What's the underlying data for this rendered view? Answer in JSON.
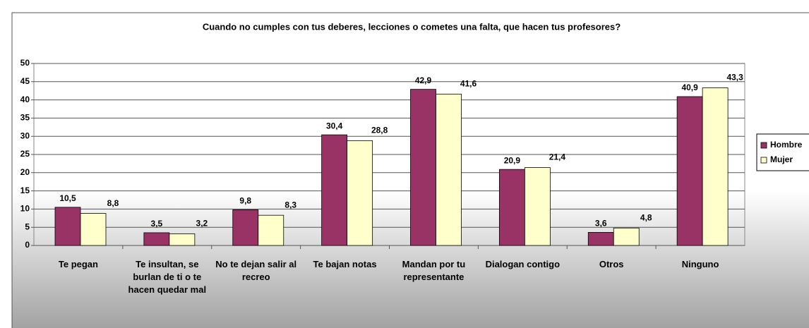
{
  "chart_data": {
    "type": "bar",
    "title": "Cuando no cumples con tus deberes, lecciones o cometes una falta, que hacen tus profesores?",
    "categories": [
      "Te pegan",
      "Te insultan, se burlan de ti o te hacen quedar mal",
      "No te dejan salir al recreo",
      "Te bajan notas",
      "Mandan por tu representante",
      "Dialogan contigo",
      "Otros",
      "Ninguno"
    ],
    "series": [
      {
        "name": "Hombre",
        "color": "#993366",
        "values": [
          10.5,
          3.5,
          9.8,
          30.4,
          42.9,
          20.9,
          3.6,
          40.9
        ],
        "value_labels": [
          "10,5",
          "3,5",
          "9,8",
          "30,4",
          "42,9",
          "20,9",
          "3,6",
          "40,9"
        ]
      },
      {
        "name": "Mujer",
        "color": "#FFFFCC",
        "values": [
          8.8,
          3.2,
          8.3,
          28.8,
          41.6,
          21.4,
          4.8,
          43.3
        ],
        "value_labels": [
          "8,8",
          "3,2",
          "8,3",
          "28,8",
          "41,6",
          "21,4",
          "4,8",
          "43,3"
        ]
      }
    ],
    "ylim": [
      0,
      50
    ],
    "yticks": [
      0,
      5,
      10,
      15,
      20,
      25,
      30,
      35,
      40,
      45,
      50
    ],
    "grid": true,
    "legend": "right"
  }
}
